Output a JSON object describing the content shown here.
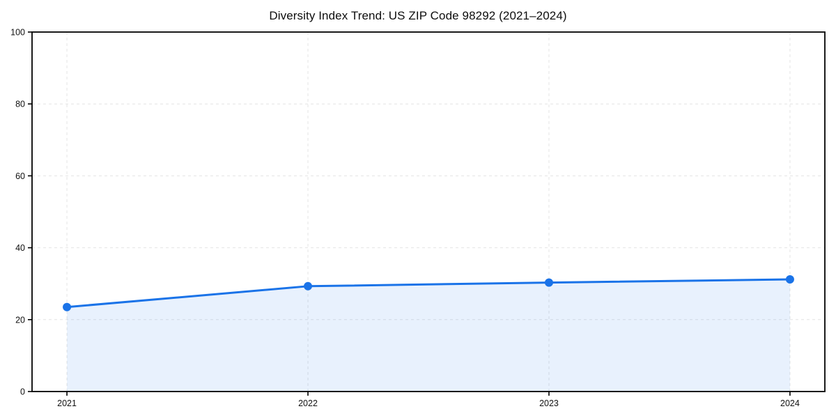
{
  "chart_data": {
    "type": "area",
    "title": "Diversity Index Trend: US ZIP Code 98292 (2021–2024)",
    "categories": [
      "2021",
      "2022",
      "2023",
      "2024"
    ],
    "series": [
      {
        "name": "Diversity Index",
        "values": [
          23.5,
          29.3,
          30.3,
          31.2
        ]
      }
    ],
    "xlabel": "",
    "ylabel": "",
    "ylim": [
      0,
      100
    ],
    "yticks": [
      0,
      20,
      40,
      60,
      80,
      100
    ],
    "grid": true,
    "grid_style": "dashed",
    "legend": "none",
    "colors": {
      "line": "#1a73e8",
      "marker": "#1a73e8",
      "fill": "rgba(26,115,232,0.10)",
      "grid": "#e4e4e4",
      "axis": "#000000",
      "tick_label": "#111111",
      "title": "#0d0d0d",
      "background": "#ffffff"
    },
    "marker": "circle",
    "line_width": 3,
    "marker_radius": 6
  }
}
